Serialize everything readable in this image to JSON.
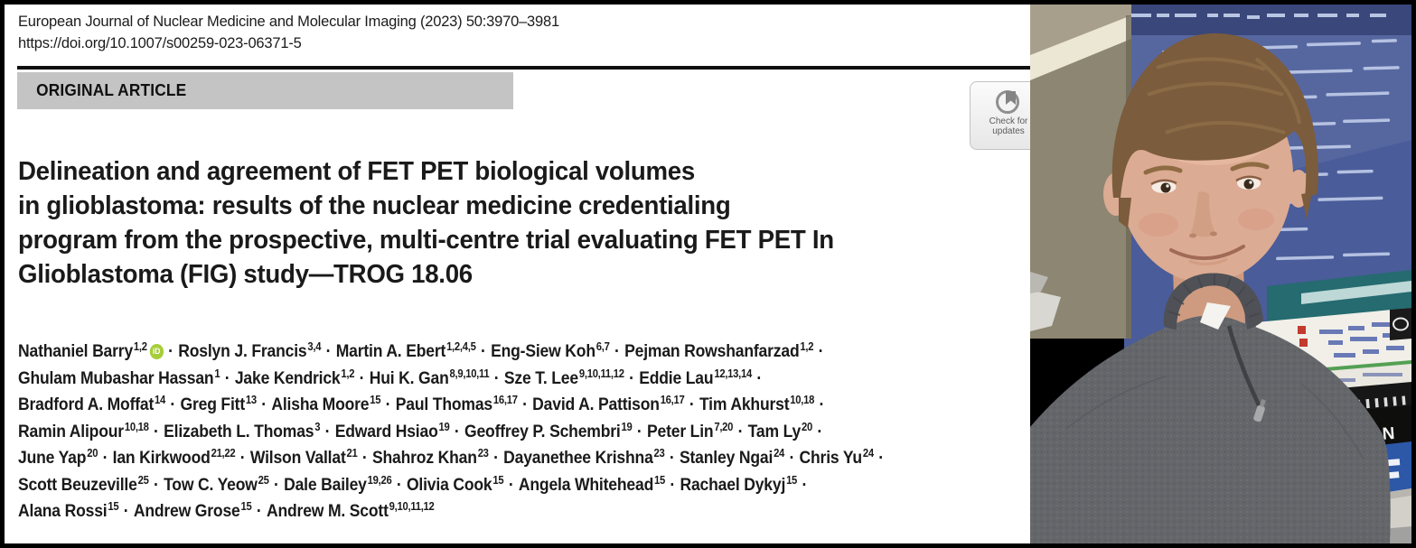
{
  "journal": {
    "citation": "European Journal of Nuclear Medicine and Molecular Imaging (2023) 50:3970–3981",
    "doi": "https://doi.org/10.1007/s00259-023-06371-5"
  },
  "banner": {
    "label": "ORIGINAL ARTICLE"
  },
  "update_badge": {
    "line1": "Check for",
    "line2": "updates"
  },
  "title": {
    "lines": [
      "Delineation and agreement of FET PET biological volumes",
      "in glioblastoma: results of the nuclear medicine credentialing",
      "program from the prospective, multi-centre trial evaluating FET PET In",
      "Glioblastoma (FIG) study—TROG 18.06"
    ]
  },
  "authors": {
    "separator": "·",
    "orcid_label": "iD",
    "lines": [
      [
        {
          "name": "Nathaniel Barry",
          "sup": "1,2",
          "orcid": true
        },
        {
          "name": "Roslyn J. Francis",
          "sup": "3,4"
        },
        {
          "name": "Martin A. Ebert",
          "sup": "1,2,4,5"
        },
        {
          "name": "Eng-Siew Koh",
          "sup": "6,7"
        },
        {
          "name": "Pejman Rowshanfarzad",
          "sup": "1,2"
        }
      ],
      [
        {
          "name": "Ghulam Mubashar Hassan",
          "sup": "1"
        },
        {
          "name": "Jake Kendrick",
          "sup": "1,2"
        },
        {
          "name": "Hui K. Gan",
          "sup": "8,9,10,11"
        },
        {
          "name": "Sze T. Lee",
          "sup": "9,10,11,12"
        },
        {
          "name": "Eddie Lau",
          "sup": "12,13,14"
        }
      ],
      [
        {
          "name": "Bradford A. Moffat",
          "sup": "14"
        },
        {
          "name": "Greg Fitt",
          "sup": "13"
        },
        {
          "name": "Alisha Moore",
          "sup": "15"
        },
        {
          "name": "Paul Thomas",
          "sup": "16,17"
        },
        {
          "name": "David A. Pattison",
          "sup": "16,17"
        },
        {
          "name": "Tim Akhurst",
          "sup": "10,18"
        }
      ],
      [
        {
          "name": "Ramin Alipour",
          "sup": "10,18"
        },
        {
          "name": "Elizabeth L. Thomas",
          "sup": "3"
        },
        {
          "name": "Edward Hsiao",
          "sup": "19"
        },
        {
          "name": "Geoffrey P. Schembri",
          "sup": "19"
        },
        {
          "name": "Peter Lin",
          "sup": "7,20"
        },
        {
          "name": "Tam Ly",
          "sup": "20"
        }
      ],
      [
        {
          "name": "June Yap",
          "sup": "20"
        },
        {
          "name": "Ian Kirkwood",
          "sup": "21,22"
        },
        {
          "name": "Wilson Vallat",
          "sup": "21"
        },
        {
          "name": "Shahroz Khan",
          "sup": "23"
        },
        {
          "name": "Dayanethee Krishna",
          "sup": "23"
        },
        {
          "name": "Stanley Ngai",
          "sup": "24"
        },
        {
          "name": "Chris Yu",
          "sup": "24"
        }
      ],
      [
        {
          "name": "Scott Beuzeville",
          "sup": "25"
        },
        {
          "name": "Tow C. Yeow",
          "sup": "25"
        },
        {
          "name": "Dale Bailey",
          "sup": "19,26"
        },
        {
          "name": "Olivia Cook",
          "sup": "15"
        },
        {
          "name": "Angela Whitehead",
          "sup": "15"
        },
        {
          "name": "Rachael Dykyj",
          "sup": "15"
        }
      ],
      [
        {
          "name": "Alana Rossi",
          "sup": "15"
        },
        {
          "name": "Andrew Grose",
          "sup": "15"
        },
        {
          "name": "Andrew M. Scott",
          "sup": "9,10,11,12"
        }
      ]
    ]
  },
  "photo": {
    "book_spine_text": "RADIATION",
    "colors": {
      "monitor_blue": "#4a5c99",
      "monitor_band": "#2c3a72",
      "code_text": "#c7d3ee",
      "cabinet": "#8d8672",
      "cream": "#ece6d4",
      "hair": "#7b5c3c",
      "hair_light": "#97764e",
      "skin": "#dcab93",
      "skin_shadow": "#cf9b80",
      "blush": "#d4907c",
      "sweater": "#64666a",
      "collar": "#4f5156",
      "shirt": "#f4f3ef",
      "book_black": "#0e0e0c",
      "book_blue": "#2d57a7",
      "book_white": "#f1efe8",
      "teal": "#256b70",
      "desk": "#d2d0c9"
    }
  }
}
